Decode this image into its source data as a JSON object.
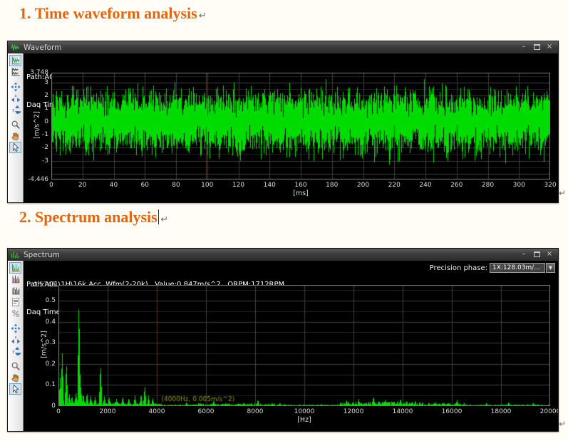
{
  "document": {
    "heading1": "1. Time waveform analysis",
    "heading2": "2. Spectrum analysis",
    "return_mark": "↵"
  },
  "colors": {
    "heading_orange": "#e3650c",
    "trace_green": "#00dc00",
    "cursor_red": "#7c2626",
    "annotation_olive": "#97971c",
    "plot_background": "#000000",
    "grid_major": "#3e3e3e",
    "grid_minor": "#252525"
  },
  "waveform_window": {
    "title": "Waveform",
    "controls": {
      "minimize": "–",
      "close": "×"
    },
    "info_line1": "Path:A01\\1H\\16k Acc. Wfm(2-20k) Sensibility:1mv/s^2   Value:0.847m/s^2   ORPM:1712RPM",
    "info_line2": "Daq Time:2015-01-05 16:30:02   Cursor:99.082ms,-0.629m/s^2",
    "toolbar": [
      {
        "name": "single-waveform-view-button",
        "type": "single-waveform",
        "selected": true
      },
      {
        "name": "multi-waveform-view-button",
        "type": "multi-waveform"
      },
      {
        "type": "gap"
      },
      {
        "name": "pan-button",
        "type": "pan"
      },
      {
        "name": "zoom-x-button",
        "type": "zoom-x"
      },
      {
        "name": "zoom-y-button",
        "type": "zoom-y"
      },
      {
        "type": "gap"
      },
      {
        "name": "magnifier-button",
        "type": "magnifier"
      },
      {
        "name": "hand-pan-button",
        "type": "hand"
      },
      {
        "name": "select-cursor-button",
        "type": "select-cursor",
        "selected": true
      }
    ]
  },
  "spectrum_window": {
    "title": "Spectrum",
    "controls": {
      "minimize": "–",
      "close": "×"
    },
    "precision_phase_label": "Precision phase:",
    "precision_phase_value": "1X:128.03m/...",
    "info_line1": "Path:A01\\1H\\16k Acc. Wfm(2-20k)   Value:0.847m/s^2   ORPM:1712RPM",
    "info_line2": "Daq Time:2015-01-05 16:30:02   Cursor:4000Hz,0.005m/s^2",
    "toolbar": [
      {
        "name": "spectrum-view-button",
        "type": "spectrum-chart",
        "selected": true
      },
      {
        "name": "harmonic-cursor-button",
        "type": "comb-red"
      },
      {
        "name": "sideband-cursor-button",
        "type": "comb-dark"
      },
      {
        "name": "report-button",
        "type": "report"
      },
      {
        "name": "percent-scale-button",
        "type": "percent"
      },
      {
        "type": "gap"
      },
      {
        "name": "pan-button",
        "type": "pan"
      },
      {
        "name": "zoom-x-button",
        "type": "zoom-x"
      },
      {
        "name": "zoom-y-button",
        "type": "zoom-y"
      },
      {
        "type": "gap"
      },
      {
        "name": "magnifier-button",
        "type": "magnifier"
      },
      {
        "name": "hand-pan-button",
        "type": "hand"
      },
      {
        "name": "select-cursor-button",
        "type": "select-cursor",
        "selected": true
      }
    ]
  },
  "chart_data": [
    {
      "type": "line",
      "title": "Waveform",
      "xlabel": "[ms]",
      "ylabel": "[m/s^2]",
      "xlim": [
        0,
        320
      ],
      "ylim": [
        -4.446,
        3.748
      ],
      "xticks": [
        0,
        20,
        40,
        60,
        80,
        100,
        120,
        140,
        160,
        180,
        200,
        220,
        240,
        260,
        280,
        300,
        320
      ],
      "yticks": [
        "3.748",
        "3",
        "2",
        "1",
        "0",
        "-1",
        "-2",
        "-3",
        "-4.446"
      ],
      "grid": true,
      "signal": {
        "kind": "broadband-noise",
        "rms_m_s2": 0.847,
        "approx_peak_m_s2": 3.3,
        "seed": 1234
      },
      "cursor": {
        "x": 99.082,
        "y": -0.629,
        "label": "(99.082ms, -0.629m/s^2)"
      }
    },
    {
      "type": "line",
      "title": "Spectrum",
      "xlabel": "[Hz]",
      "ylabel": "[m/s^2]",
      "xlim": [
        0,
        20000
      ],
      "ylim": [
        0,
        0.5746
      ],
      "xticks": [
        0,
        2000,
        4000,
        6000,
        8000,
        10000,
        12000,
        14000,
        16000,
        18000,
        20000
      ],
      "yticks": [
        "0.5746",
        "0.5",
        "0.4",
        "0.3",
        "0.2",
        "0.1",
        "0"
      ],
      "grid": true,
      "noise_floor": 0.006,
      "seed": 77,
      "peaks": [
        [
          60,
          0.14
        ],
        [
          140,
          0.27
        ],
        [
          310,
          0.215
        ],
        [
          430,
          0.06
        ],
        [
          540,
          0.05
        ],
        [
          700,
          0.065
        ],
        [
          820,
          0.52
        ],
        [
          900,
          0.09
        ],
        [
          1000,
          0.06
        ],
        [
          1150,
          0.065
        ],
        [
          1300,
          0.05
        ],
        [
          1480,
          0.045
        ],
        [
          1700,
          0.21
        ],
        [
          1860,
          0.05
        ],
        [
          2050,
          0.045
        ],
        [
          2350,
          0.035
        ],
        [
          2600,
          0.045
        ],
        [
          2850,
          0.04
        ],
        [
          3100,
          0.05
        ],
        [
          3350,
          0.06
        ],
        [
          3500,
          0.1
        ],
        [
          3650,
          0.05
        ],
        [
          3820,
          0.04
        ],
        [
          5200,
          0.02
        ],
        [
          6300,
          0.027
        ],
        [
          8100,
          0.032
        ],
        [
          9000,
          0.016
        ],
        [
          11700,
          0.03
        ],
        [
          12200,
          0.035
        ],
        [
          12800,
          0.047
        ],
        [
          13300,
          0.032
        ],
        [
          13900,
          0.036
        ],
        [
          14500,
          0.026
        ],
        [
          15300,
          0.02
        ],
        [
          16200,
          0.03
        ],
        [
          17400,
          0.016
        ],
        [
          18300,
          0.02
        ],
        [
          19300,
          0.016
        ]
      ],
      "cursor": {
        "x": 4000,
        "y": 0.005,
        "label": "(4000Hz, 0.005m/s^2)"
      }
    }
  ]
}
